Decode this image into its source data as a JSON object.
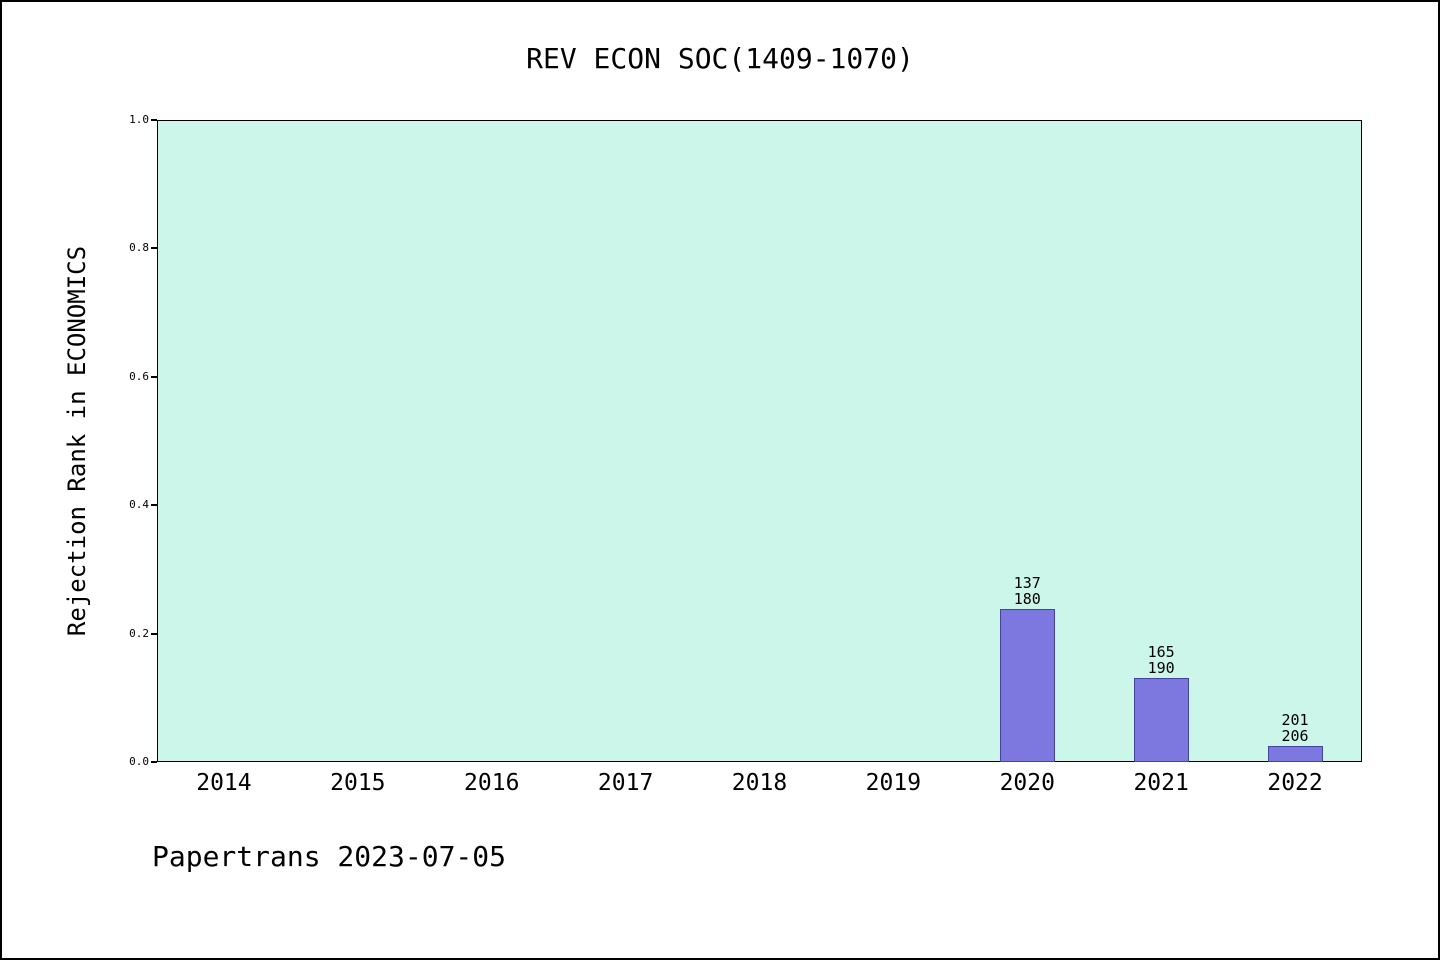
{
  "chart_data": {
    "type": "bar",
    "title": "REV ECON SOC(1409-1070)",
    "xlabel": "",
    "ylabel": "Rejection Rank in ECONOMICS",
    "categories": [
      "2014",
      "2015",
      "2016",
      "2017",
      "2018",
      "2019",
      "2020",
      "2021",
      "2022"
    ],
    "values": [
      0,
      0,
      0,
      0,
      0,
      0,
      0.2389,
      0.1316,
      0.0243
    ],
    "annotations": [
      {
        "category": "2020",
        "lines": [
          "137",
          "180"
        ],
        "rank": 137,
        "total": 180
      },
      {
        "category": "2021",
        "lines": [
          "165",
          "190"
        ],
        "rank": 165,
        "total": 190
      },
      {
        "category": "2022",
        "lines": [
          "201",
          "206"
        ],
        "rank": 201,
        "total": 206
      }
    ],
    "ylim": [
      0,
      1
    ],
    "yticks": [
      "0.0",
      "0.2",
      "0.4",
      "0.6",
      "0.8",
      "1.0"
    ],
    "grid": false,
    "legend": null,
    "colors": {
      "plot_bg": "#ccf6e9",
      "bar_fill": "#7d78e0",
      "bar_edge": "#44449a",
      "axis": "#000000",
      "text": "#000000"
    }
  },
  "footer": {
    "text": "Papertrans 2023-07-05"
  }
}
